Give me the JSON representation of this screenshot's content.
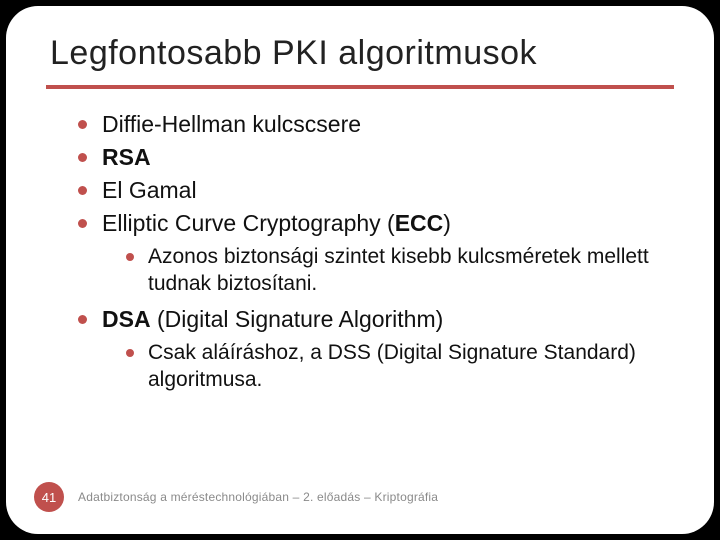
{
  "slide": {
    "title": "Legfontosabb PKI algoritmusok",
    "accent_color": "#c0504d",
    "background": "#ffffff",
    "outer_background": "#000000",
    "border_radius": 32,
    "bullets": {
      "b1": "Diffie-Hellman kulcscsere",
      "b2_bold": "RSA",
      "b3": "El Gamal",
      "b4_pre": "Elliptic Curve Cryptography (",
      "b4_bold": "ECC",
      "b4_post": ")",
      "b4_sub": "Azonos biztonsági szintet kisebb kulcsméretek mellett tudnak biztosítani.",
      "b5_bold": "DSA",
      "b5_rest": " (Digital Signature Algorithm)",
      "b5_sub": "Csak aláíráshoz, a DSS (Digital Signature Standard) algoritmusa."
    },
    "footer": {
      "page": "41",
      "text": "Adatbiztonság a méréstechnológiában – 2. előadás – Kriptográfia"
    }
  }
}
